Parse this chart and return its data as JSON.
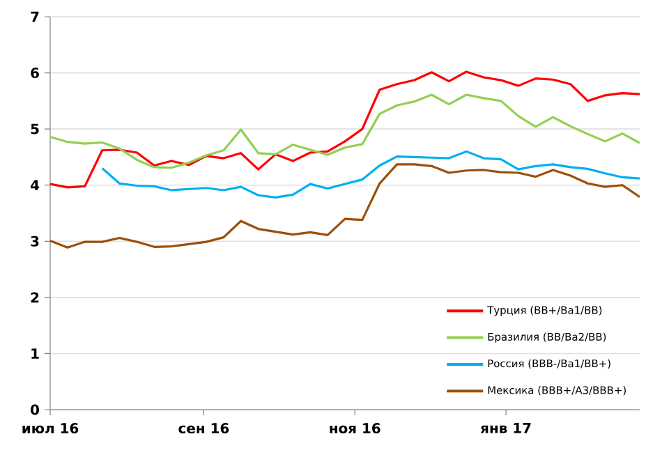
{
  "chart_data": {
    "type": "line",
    "x": [
      "2016-07-01",
      "2016-07-08",
      "2016-07-15",
      "2016-07-22",
      "2016-07-29",
      "2016-08-05",
      "2016-08-12",
      "2016-08-19",
      "2016-08-26",
      "2016-09-02",
      "2016-09-09",
      "2016-09-16",
      "2016-09-23",
      "2016-09-30",
      "2016-10-07",
      "2016-10-14",
      "2016-10-21",
      "2016-10-28",
      "2016-11-04",
      "2016-11-11",
      "2016-11-18",
      "2016-11-25",
      "2016-12-02",
      "2016-12-09",
      "2016-12-16",
      "2016-12-23",
      "2016-12-30",
      "2017-01-06",
      "2017-01-13",
      "2017-01-20",
      "2017-01-27",
      "2017-02-03",
      "2017-02-10",
      "2017-02-17",
      "2017-02-24"
    ],
    "series": [
      {
        "name": "Турция (BB+/Ba1/BB)",
        "color": "#ff0000",
        "values": [
          4.02,
          3.96,
          3.98,
          4.62,
          4.63,
          4.58,
          4.35,
          4.43,
          4.36,
          4.52,
          4.48,
          4.57,
          4.28,
          4.55,
          4.43,
          4.58,
          4.6,
          4.78,
          5.0,
          5.7,
          5.8,
          5.87,
          6.01,
          5.85,
          6.02,
          5.92,
          5.87,
          5.77,
          5.9,
          5.88,
          5.8,
          5.5,
          5.6,
          5.64,
          5.62
        ]
      },
      {
        "name": "Бразилия (BB/Ba2/BB)",
        "color": "#92d050",
        "values": [
          4.86,
          4.77,
          4.74,
          4.76,
          4.65,
          4.45,
          4.32,
          4.31,
          4.4,
          4.53,
          4.62,
          4.99,
          4.57,
          4.55,
          4.72,
          4.63,
          4.54,
          4.67,
          4.73,
          5.27,
          5.42,
          5.49,
          5.61,
          5.44,
          5.61,
          5.55,
          5.5,
          5.23,
          5.04,
          5.21,
          5.05,
          4.91,
          4.78,
          4.92,
          4.75
        ]
      },
      {
        "name": "Россия (BBB-/Ba1/BB+)",
        "color": "#00b0f0",
        "values": [
          null,
          null,
          null,
          4.3,
          4.03,
          3.99,
          3.98,
          3.91,
          3.93,
          3.95,
          3.91,
          3.97,
          3.82,
          3.78,
          3.83,
          4.02,
          3.94,
          4.02,
          4.1,
          4.35,
          4.51,
          4.5,
          4.49,
          4.48,
          4.6,
          4.48,
          4.46,
          4.28,
          4.34,
          4.37,
          4.32,
          4.29,
          4.21,
          4.14,
          4.12
        ]
      },
      {
        "name": "Мексика (BBB+/A3/BBB+)",
        "color": "#9c4f0a",
        "values": [
          3.01,
          2.89,
          2.99,
          2.99,
          3.06,
          2.99,
          2.9,
          2.91,
          2.95,
          2.99,
          3.07,
          3.36,
          3.22,
          3.17,
          3.12,
          3.16,
          3.11,
          3.4,
          3.38,
          4.03,
          4.37,
          4.37,
          4.34,
          4.22,
          4.26,
          4.27,
          4.23,
          4.22,
          4.15,
          4.27,
          4.17,
          4.03,
          3.97,
          4.0,
          3.79
        ]
      }
    ],
    "xlim": [
      "2016-07-01",
      "2017-02-24"
    ],
    "xticks": [
      {
        "value": "2016-07-01",
        "label": "июл 16"
      },
      {
        "value": "2016-09-01",
        "label": "сен 16"
      },
      {
        "value": "2016-11-01",
        "label": "ноя 16"
      },
      {
        "value": "2017-01-01",
        "label": "янв 17"
      }
    ],
    "ylim": [
      0,
      7
    ],
    "yticks": [
      0,
      1,
      2,
      3,
      4,
      5,
      6,
      7
    ],
    "grid": "y",
    "legend": "bottom right"
  }
}
